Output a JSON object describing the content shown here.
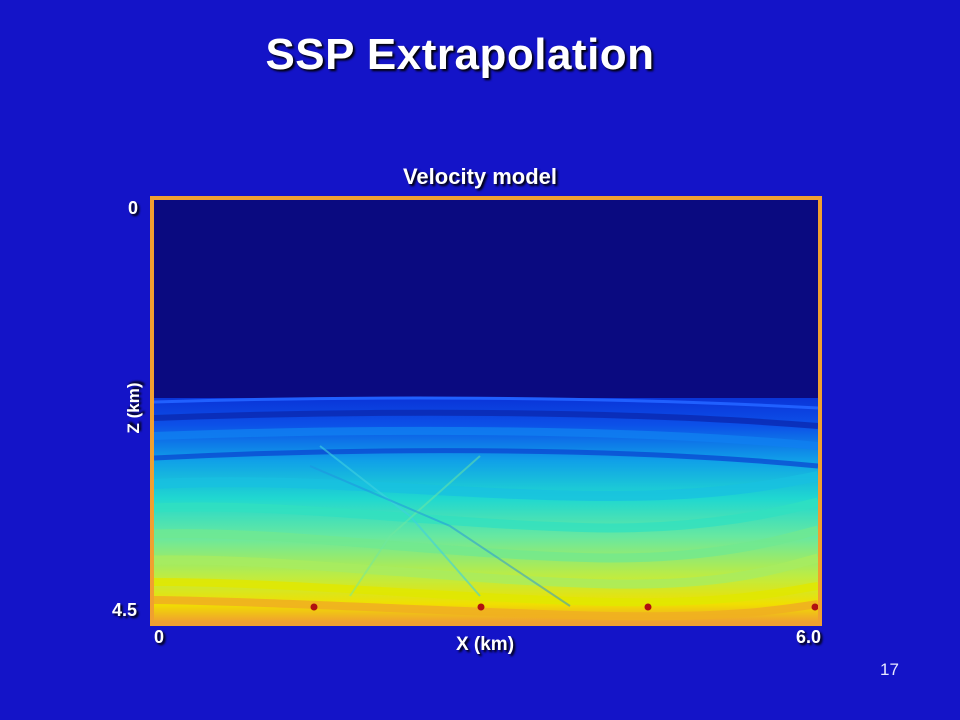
{
  "slide": {
    "title": "SSP Extrapolation",
    "page_number": "17"
  },
  "figure": {
    "title": "Velocity model",
    "x_axis": {
      "label": "X (km)",
      "min_label": "0",
      "max_label": "6.0",
      "range": [
        0,
        6.0
      ]
    },
    "z_axis": {
      "label": "Z (km)",
      "min_label": "0",
      "max_label": "4.5",
      "range": [
        0,
        4.5
      ]
    },
    "frame_color": "#f0a030",
    "colormap": [
      "#0a0a80",
      "#0a28e6",
      "#12b4e0",
      "#5ee0a0",
      "#e8e800",
      "#f0a030"
    ],
    "markers_color": "#b01010"
  }
}
